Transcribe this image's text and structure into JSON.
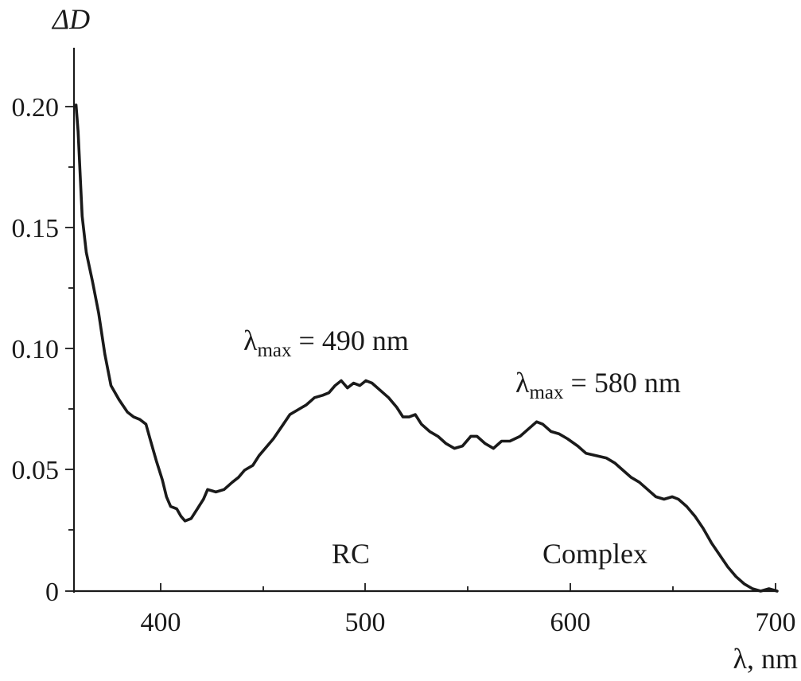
{
  "chart_data": {
    "type": "line",
    "ylabel": "ΔD",
    "xlabel": "λ, nm",
    "xlim": [
      358,
      700
    ],
    "ylim": [
      0,
      0.22
    ],
    "x_ticks": [
      "400",
      "500",
      "600",
      "700"
    ],
    "y_ticks": [
      "0",
      "0.05",
      "0.10",
      "0.15",
      "0.20"
    ],
    "grid": false,
    "annotations": [
      {
        "symbol": "λ",
        "subscript": "max",
        "text": " = 490 nm"
      },
      {
        "symbol": "λ",
        "subscript": "max",
        "text": " = 580 nm"
      },
      {
        "text": "RC"
      },
      {
        "text": "Complex"
      }
    ],
    "series": [
      {
        "points": [
          [
            359,
            0.201
          ],
          [
            360,
            0.19
          ],
          [
            361,
            0.172
          ],
          [
            362,
            0.155
          ],
          [
            364,
            0.14
          ],
          [
            367,
            0.128
          ],
          [
            370,
            0.115
          ],
          [
            373,
            0.098
          ],
          [
            376,
            0.085
          ],
          [
            380,
            0.079
          ],
          [
            384,
            0.074
          ],
          [
            387,
            0.072
          ],
          [
            390,
            0.071
          ],
          [
            393,
            0.069
          ],
          [
            395,
            0.063
          ],
          [
            398,
            0.054
          ],
          [
            401,
            0.046
          ],
          [
            403,
            0.039
          ],
          [
            405,
            0.035
          ],
          [
            408,
            0.034
          ],
          [
            410,
            0.031
          ],
          [
            412,
            0.029
          ],
          [
            415,
            0.03
          ],
          [
            418,
            0.034
          ],
          [
            421,
            0.038
          ],
          [
            423,
            0.042
          ],
          [
            427,
            0.041
          ],
          [
            431,
            0.042
          ],
          [
            435,
            0.045
          ],
          [
            438,
            0.047
          ],
          [
            441,
            0.05
          ],
          [
            445,
            0.052
          ],
          [
            448,
            0.056
          ],
          [
            452,
            0.06
          ],
          [
            455,
            0.063
          ],
          [
            459,
            0.068
          ],
          [
            463,
            0.073
          ],
          [
            467,
            0.075
          ],
          [
            471,
            0.077
          ],
          [
            475,
            0.08
          ],
          [
            479,
            0.081
          ],
          [
            482,
            0.082
          ],
          [
            485,
            0.085
          ],
          [
            488,
            0.087
          ],
          [
            491,
            0.084
          ],
          [
            494,
            0.086
          ],
          [
            497,
            0.085
          ],
          [
            500,
            0.087
          ],
          [
            503,
            0.086
          ],
          [
            507,
            0.083
          ],
          [
            511,
            0.08
          ],
          [
            515,
            0.076
          ],
          [
            518,
            0.072
          ],
          [
            521,
            0.072
          ],
          [
            524,
            0.073
          ],
          [
            527,
            0.069
          ],
          [
            531,
            0.066
          ],
          [
            535,
            0.064
          ],
          [
            539,
            0.061
          ],
          [
            543,
            0.059
          ],
          [
            547,
            0.06
          ],
          [
            551,
            0.064
          ],
          [
            554,
            0.064
          ],
          [
            558,
            0.061
          ],
          [
            562,
            0.059
          ],
          [
            566,
            0.062
          ],
          [
            570,
            0.062
          ],
          [
            575,
            0.064
          ],
          [
            579,
            0.067
          ],
          [
            583,
            0.07
          ],
          [
            586,
            0.069
          ],
          [
            590,
            0.066
          ],
          [
            594,
            0.065
          ],
          [
            598,
            0.063
          ],
          [
            603,
            0.06
          ],
          [
            607,
            0.057
          ],
          [
            612,
            0.056
          ],
          [
            617,
            0.055
          ],
          [
            621,
            0.053
          ],
          [
            625,
            0.05
          ],
          [
            629,
            0.047
          ],
          [
            633,
            0.045
          ],
          [
            637,
            0.042
          ],
          [
            641,
            0.039
          ],
          [
            645,
            0.038
          ],
          [
            649,
            0.039
          ],
          [
            652,
            0.038
          ],
          [
            656,
            0.035
          ],
          [
            660,
            0.031
          ],
          [
            664,
            0.026
          ],
          [
            668,
            0.02
          ],
          [
            672,
            0.015
          ],
          [
            676,
            0.01
          ],
          [
            680,
            0.006
          ],
          [
            684,
            0.003
          ],
          [
            688,
            0.001
          ],
          [
            692,
            0.0
          ],
          [
            696,
            0.001
          ],
          [
            700,
            0.0
          ]
        ]
      }
    ]
  }
}
